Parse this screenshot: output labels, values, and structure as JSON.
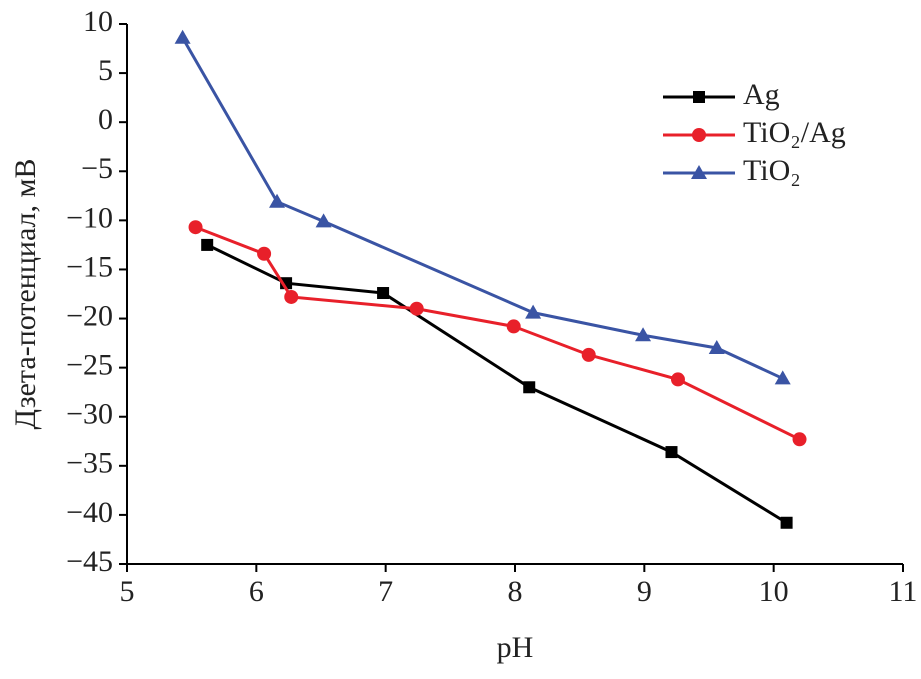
{
  "chart_data": {
    "type": "line",
    "x_label": "pH",
    "y_label": "Дзета-потенциал, мВ",
    "xlim": [
      5,
      11
    ],
    "xticks": [
      5,
      6,
      7,
      8,
      9,
      10,
      11
    ],
    "ylim": [
      -45,
      10
    ],
    "yticks": [
      {
        "value": -45,
        "label": "−45"
      },
      {
        "value": -40,
        "label": "−40"
      },
      {
        "value": -35,
        "label": "−35"
      },
      {
        "value": -30,
        "label": "−30"
      },
      {
        "value": -25,
        "label": "−25"
      },
      {
        "value": -20,
        "label": "−20"
      },
      {
        "value": -15,
        "label": "−15"
      },
      {
        "value": -10,
        "label": "−10"
      },
      {
        "value": -5,
        "label": "−5"
      },
      0,
      5,
      10
    ],
    "legend": "upper right",
    "series": [
      {
        "name": "Ag",
        "color": "#000000",
        "marker": "square",
        "x": [
          5.62,
          6.23,
          6.98,
          8.11,
          9.21,
          10.1
        ],
        "values": [
          -12.5,
          -16.4,
          -17.4,
          -27.0,
          -33.6,
          -40.8
        ]
      },
      {
        "name": "TiO₂/Ag",
        "color": "#e8202a",
        "marker": "circle",
        "x": [
          5.53,
          6.06,
          6.27,
          7.24,
          7.99,
          8.57,
          9.26,
          10.2
        ],
        "values": [
          -10.7,
          -13.4,
          -17.8,
          -19.0,
          -20.8,
          -23.7,
          -26.2,
          -32.3
        ]
      },
      {
        "name": "TiO₂",
        "color": "#3a54a4",
        "marker": "triangle",
        "x": [
          5.43,
          6.16,
          6.52,
          8.14,
          8.99,
          9.56,
          10.07
        ],
        "values": [
          8.6,
          -8.1,
          -10.1,
          -19.4,
          -21.7,
          -23.0,
          -26.1
        ]
      }
    ]
  }
}
